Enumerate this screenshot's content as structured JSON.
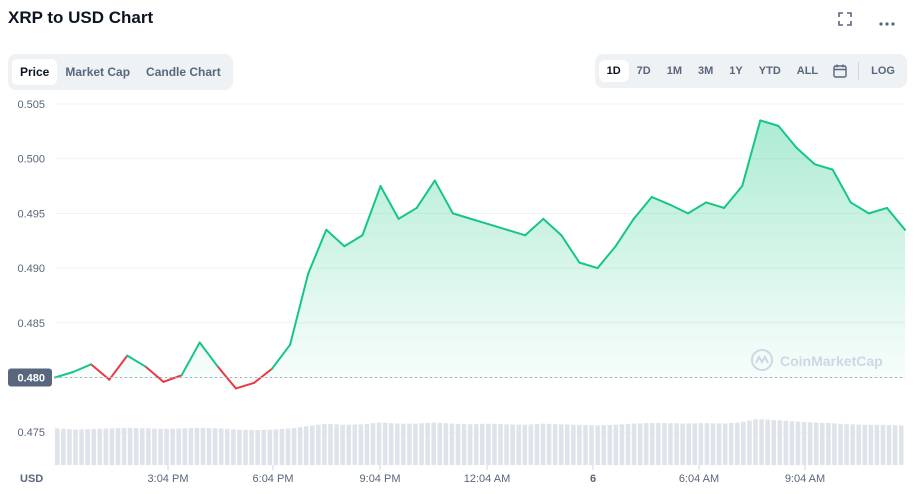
{
  "header": {
    "title": "XRP to USD Chart"
  },
  "left_tabs": [
    {
      "label": "Price",
      "active": true
    },
    {
      "label": "Market Cap",
      "active": false
    },
    {
      "label": "Candle Chart",
      "active": false
    }
  ],
  "right_tabs": [
    {
      "label": "1D",
      "active": true
    },
    {
      "label": "7D",
      "active": false
    },
    {
      "label": "1M",
      "active": false
    },
    {
      "label": "3M",
      "active": false
    },
    {
      "label": "1Y",
      "active": false
    },
    {
      "label": "YTD",
      "active": false
    },
    {
      "label": "ALL",
      "active": false
    }
  ],
  "log_label": "LOG",
  "icons": {
    "fullscreen": "fullscreen-icon",
    "more": "more-icon",
    "calendar": "calendar-icon"
  },
  "watermark": "CoinMarketCap",
  "colors": {
    "up": "#16c784",
    "down": "#ea3943",
    "fill_top": "#16c784",
    "grid": "#eff2f5",
    "baseline_badge_bg": "#58667e"
  },
  "chart_data": {
    "type": "area",
    "title": "XRP to USD Chart",
    "ylabel": "USD",
    "xlabel": "",
    "ylim": [
      0.472,
      0.505
    ],
    "yticks": [
      "0.505",
      "0.500",
      "0.495",
      "0.490",
      "0.485",
      "0.480",
      "0.475"
    ],
    "baseline_label": "0.480",
    "baseline": 0.48,
    "xticks": [
      "3:04 PM",
      "6:04 PM",
      "9:04 PM",
      "12:04 AM",
      "6",
      "6:04 AM",
      "9:04 AM"
    ],
    "grid": true,
    "x": [
      "12:04 PM",
      "12:30 PM",
      "1:00 PM",
      "1:30 PM",
      "2:00 PM",
      "2:30 PM",
      "3:04 PM",
      "3:30 PM",
      "4:00 PM",
      "4:30 PM",
      "5:00 PM",
      "5:30 PM",
      "6:04 PM",
      "6:30 PM",
      "7:00 PM",
      "7:30 PM",
      "8:00 PM",
      "8:30 PM",
      "9:04 PM",
      "9:30 PM",
      "10:00 PM",
      "10:30 PM",
      "11:00 PM",
      "11:30 PM",
      "12:04 AM",
      "12:30 AM",
      "1:00 AM",
      "1:30 AM",
      "2:00 AM",
      "2:30 AM",
      "3:04 AM",
      "3:30 AM",
      "4:00 AM",
      "4:30 AM",
      "5:00 AM",
      "5:30 AM",
      "6:04 AM",
      "6:30 AM",
      "7:00 AM",
      "7:30 AM",
      "8:00 AM",
      "8:30 AM",
      "9:04 AM",
      "9:30 AM",
      "10:00 AM",
      "10:30 AM",
      "11:00 AM",
      "11:30 AM"
    ],
    "series": [
      {
        "values": [
          0.48,
          0.4805,
          0.4812,
          0.4798,
          0.482,
          0.481,
          0.4796,
          0.4802,
          0.4832,
          0.481,
          0.479,
          0.4795,
          0.4808,
          0.483,
          0.4895,
          0.4935,
          0.492,
          0.493,
          0.4975,
          0.4945,
          0.4955,
          0.498,
          0.495,
          0.4945,
          0.494,
          0.4935,
          0.493,
          0.4945,
          0.493,
          0.4905,
          0.49,
          0.492,
          0.4945,
          0.4965,
          0.4958,
          0.495,
          0.496,
          0.4955,
          0.4975,
          0.5035,
          0.503,
          0.501,
          0.4995,
          0.499,
          0.496,
          0.495,
          0.4955,
          0.4935
        ]
      }
    ],
    "volume": [
      0.62,
      0.6,
      0.61,
      0.62,
      0.63,
      0.62,
      0.61,
      0.62,
      0.63,
      0.62,
      0.6,
      0.59,
      0.6,
      0.62,
      0.66,
      0.7,
      0.68,
      0.69,
      0.72,
      0.7,
      0.7,
      0.72,
      0.7,
      0.69,
      0.7,
      0.69,
      0.68,
      0.7,
      0.69,
      0.68,
      0.67,
      0.68,
      0.7,
      0.71,
      0.71,
      0.7,
      0.71,
      0.7,
      0.72,
      0.78,
      0.76,
      0.74,
      0.72,
      0.71,
      0.69,
      0.68,
      0.68,
      0.67
    ]
  }
}
